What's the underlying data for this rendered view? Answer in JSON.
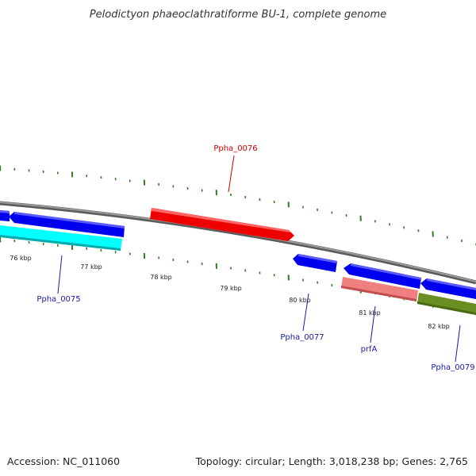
{
  "title": "Pelodictyon phaeoclathratiforme BU-1, complete genome",
  "accession": "Accession: NC_011060",
  "topology": "Topology: circular; Length: 3,018,238 bp; Genes: 2,765",
  "colors": {
    "backbone": "#808080",
    "tick": "#2e7d1e",
    "label_blue": "#1a1aa8",
    "label_red": "#cc0000",
    "gene_blue": "#0000ee",
    "gene_red": "#ee0000",
    "gene_cyan": "#00ffff",
    "gene_pink": "#f08080",
    "gene_olive": "#6b8e23"
  },
  "axis_ticks": [
    "76 kbp",
    "77 kbp",
    "78 kbp",
    "79 kbp",
    "80 kbp",
    "81 kbp",
    "82 kbp"
  ],
  "gene_labels": {
    "ppha_0075": "Ppha_0075",
    "ppha_0076": "Ppha_0076",
    "ppha_0077": "Ppha_0077",
    "prfa": "prfA",
    "ppha_0079": "Ppha_0079"
  }
}
